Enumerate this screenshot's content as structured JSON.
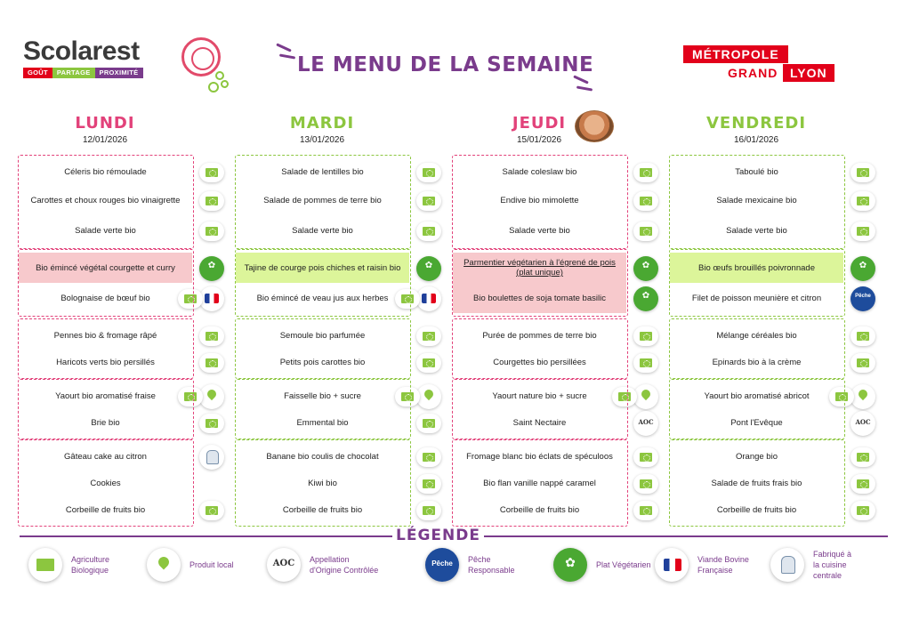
{
  "brand": {
    "name": "Scolarest",
    "tagline": [
      "GOÛT",
      "PARTAGE",
      "PROXIMITÉ"
    ],
    "tagline_colors": [
      "#e2001a",
      "#8cc63f",
      "#7a3b8c"
    ]
  },
  "title": "LE MENU DE LA SEMAINE",
  "partner": {
    "line1": "MÉTROPOLE",
    "line2": "GRAND",
    "line3": "LYON"
  },
  "colors": {
    "pink": "#e2427a",
    "green": "#8cc63f",
    "purple": "#7a3b8c",
    "red": "#e2001a"
  },
  "days": [
    {
      "name": "LUNDI",
      "date": "12/01/2026",
      "theme": "pink",
      "blocks": [
        [
          [
            "Céleris bio rémoulade",
            [
              "bio"
            ]
          ],
          [
            "Carottes et choux rouges bio vinaigrette",
            [
              "bio"
            ]
          ],
          [
            "Salade verte bio",
            [
              "bio"
            ]
          ]
        ],
        [
          [
            "Bio émincé végétal courgette et curry",
            [
              "veg"
            ]
          ],
          [
            "Bolognaise de bœuf bio",
            [
              "bio",
              "vbf"
            ]
          ]
        ],
        [
          [
            "Pennes bio & fromage râpé",
            [
              "bio"
            ]
          ],
          [
            "Haricots verts bio persillés",
            [
              "bio"
            ]
          ]
        ],
        [
          [
            "Yaourt bio aromatisé fraise",
            [
              "bio",
              "loc"
            ]
          ],
          [
            "Brie bio",
            [
              "bio"
            ]
          ]
        ],
        [
          [
            "Gâteau cake au citron",
            [
              "chef"
            ]
          ],
          [
            "Cookies",
            []
          ],
          [
            "Corbeille de fruits bio",
            [
              "bio"
            ]
          ]
        ]
      ]
    },
    {
      "name": "MARDI",
      "date": "13/01/2026",
      "theme": "green",
      "blocks": [
        [
          [
            "Salade de lentilles bio",
            [
              "bio"
            ]
          ],
          [
            "Salade de pommes de terre bio",
            [
              "bio"
            ]
          ],
          [
            "Salade verte bio",
            [
              "bio"
            ]
          ]
        ],
        [
          [
            "Tajine de courge pois chiches et raisin bio",
            [
              "veg"
            ]
          ],
          [
            "Bio émincé de veau jus aux herbes",
            [
              "bio",
              "vbf"
            ]
          ]
        ],
        [
          [
            "Semoule bio parfumée",
            [
              "bio"
            ]
          ],
          [
            "Petits pois carottes bio",
            [
              "bio"
            ]
          ]
        ],
        [
          [
            "Faisselle bio + sucre",
            [
              "bio",
              "loc"
            ]
          ],
          [
            "Emmental bio",
            [
              "bio"
            ]
          ]
        ],
        [
          [
            "Banane bio coulis de chocolat",
            [
              "bio"
            ]
          ],
          [
            "Kiwi bio",
            [
              "bio"
            ]
          ],
          [
            "Corbeille de fruits bio",
            [
              "bio"
            ]
          ]
        ]
      ]
    },
    {
      "name": "JEUDI",
      "date": "15/01/2026",
      "theme": "pink",
      "blocks": [
        [
          [
            "Salade coleslaw bio",
            [
              "bio"
            ]
          ],
          [
            "Endive bio mimolette",
            [
              "bio"
            ]
          ],
          [
            "Salade verte bio",
            [
              "bio"
            ]
          ]
        ],
        [
          [
            "Parmentier végétarien à l'égrené de pois (plat unique)",
            [
              "veg"
            ]
          ],
          [
            "Bio boulettes de soja tomate basilic",
            [
              "veg"
            ]
          ]
        ],
        [
          [
            "Purée de pommes de terre bio",
            [
              "bio"
            ]
          ],
          [
            "Courgettes bio persillées",
            [
              "bio"
            ]
          ]
        ],
        [
          [
            "Yaourt nature bio + sucre",
            [
              "bio",
              "loc"
            ]
          ],
          [
            "Saint Nectaire",
            [
              "aoc"
            ]
          ]
        ],
        [
          [
            "Fromage blanc bio éclats de spéculoos",
            [
              "bio"
            ]
          ],
          [
            "Bio flan vanille nappé caramel",
            [
              "bio"
            ]
          ],
          [
            "Corbeille de fruits bio",
            [
              "bio"
            ]
          ]
        ]
      ]
    },
    {
      "name": "VENDREDI",
      "date": "16/01/2026",
      "theme": "green",
      "blocks": [
        [
          [
            "Taboulé bio",
            [
              "bio"
            ]
          ],
          [
            "Salade mexicaine bio",
            [
              "bio"
            ]
          ],
          [
            "Salade verte bio",
            [
              "bio"
            ]
          ]
        ],
        [
          [
            "Bio œufs brouillés poivronnade",
            [
              "veg"
            ]
          ],
          [
            "Filet de poisson meunière et citron",
            [
              "peche"
            ]
          ]
        ],
        [
          [
            "Mélange céréales bio",
            [
              "bio"
            ]
          ],
          [
            "Epinards bio à la crème",
            [
              "bio"
            ]
          ]
        ],
        [
          [
            "Yaourt bio aromatisé abricot",
            [
              "bio",
              "loc"
            ]
          ],
          [
            "Pont l'Evêque",
            [
              "aoc"
            ]
          ]
        ],
        [
          [
            "Orange bio",
            [
              "bio"
            ]
          ],
          [
            "Salade de fruits frais bio",
            [
              "bio"
            ]
          ],
          [
            "Corbeille de fruits bio",
            [
              "bio"
            ]
          ]
        ]
      ]
    }
  ],
  "legend": {
    "title": "LÉGENDE",
    "items": [
      {
        "icon": "bio",
        "label": "Agriculture\nBiologique"
      },
      {
        "icon": "loc",
        "label": "Produit local"
      },
      {
        "icon": "aoc",
        "label": "Appellation\nd'Origine Contrôlée"
      },
      {
        "icon": "peche",
        "label": "Pêche\nResponsable"
      },
      {
        "icon": "veg",
        "label": "Plat Végétarien"
      },
      {
        "icon": "vbf",
        "label": "Viande Bovine\nFrançaise"
      },
      {
        "icon": "chef",
        "label": "Fabriqué à\nla cuisine\ncentrale"
      }
    ]
  }
}
